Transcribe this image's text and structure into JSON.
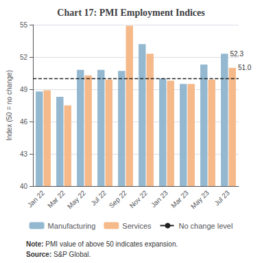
{
  "chart_data": {
    "type": "bar",
    "title": "Chart 17: PMI Employment Indices",
    "ylabel": "Index (50 = no change)",
    "categories": [
      "Jan 22",
      "Mar 22",
      "May 22",
      "Jul 22",
      "Sep 22",
      "Nov 22",
      "Jan 23",
      "Mar 23",
      "May 23",
      "Jul 23"
    ],
    "series": [
      {
        "name": "Manufacturing",
        "color": "#93b8d0",
        "values": [
          48.8,
          48.3,
          50.8,
          50.8,
          50.7,
          53.2,
          50.0,
          49.5,
          51.3,
          52.3
        ]
      },
      {
        "name": "Services",
        "color": "#f5b98a",
        "values": [
          48.9,
          47.5,
          50.3,
          49.9,
          54.9,
          52.3,
          49.8,
          49.5,
          49.9,
          51.0
        ]
      }
    ],
    "reference_lines": [
      {
        "name": "No change level",
        "value": 50.0,
        "color": "#222222",
        "line_style": "dashed"
      }
    ],
    "annotations": [
      {
        "text": "52.3",
        "series": "Manufacturing",
        "category": "Jul 23"
      },
      {
        "text": "51.0",
        "series": "Services",
        "category": "Jul 23"
      }
    ],
    "notes": [
      {
        "bold": "Note:",
        "text": " PMI value of above 50 indicates expansion."
      },
      {
        "bold": "Source:",
        "text": " S&P Global."
      }
    ],
    "ylim": [
      40,
      55
    ],
    "yticks": [
      40,
      43,
      46,
      49,
      52,
      55
    ],
    "legend": "bottom",
    "grid": true
  }
}
